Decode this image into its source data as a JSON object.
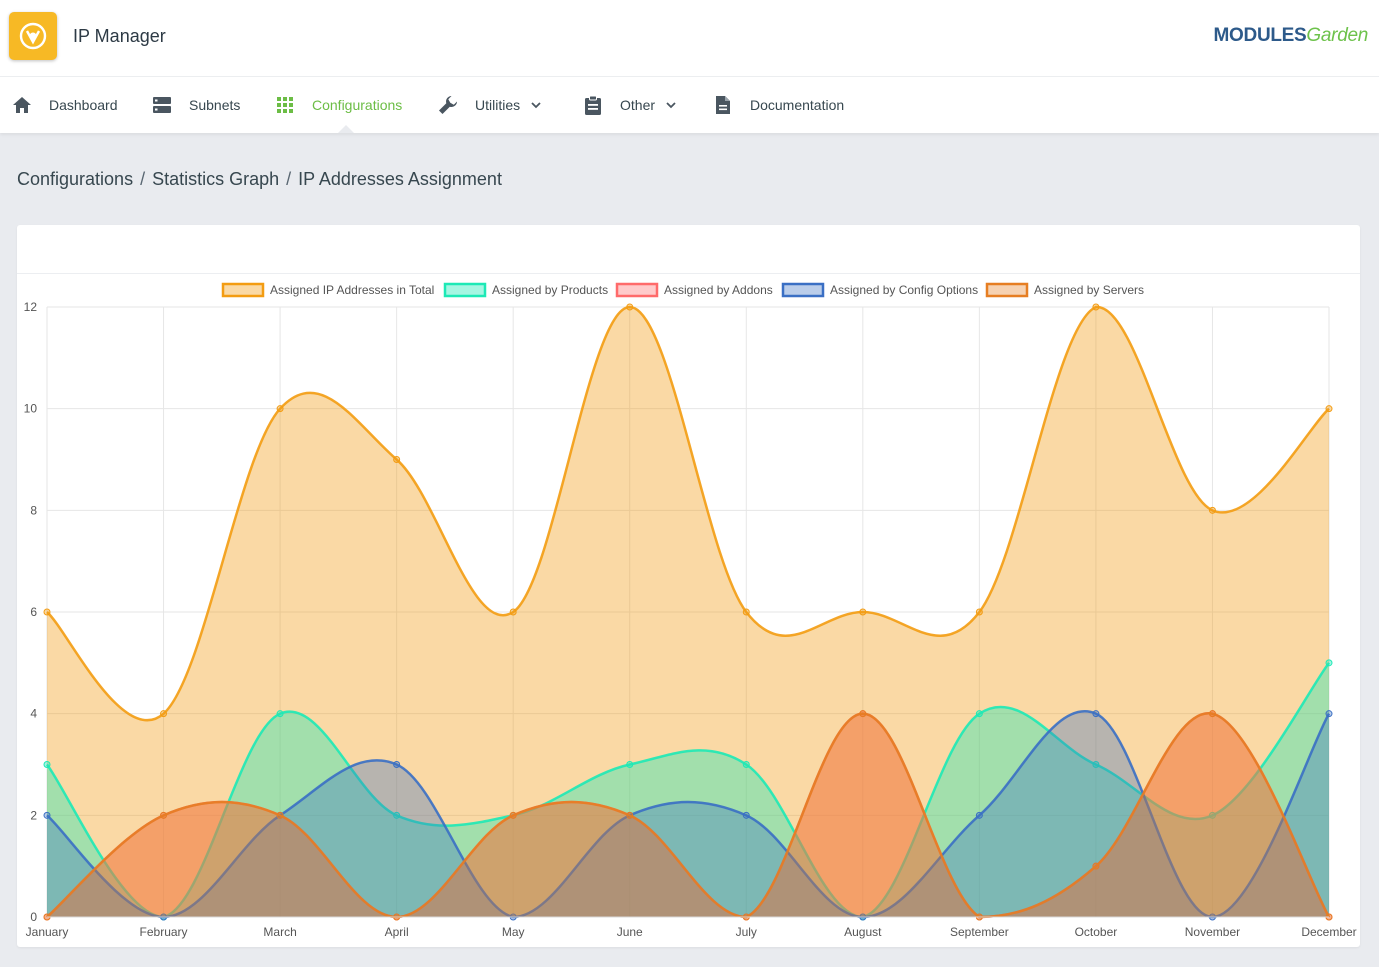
{
  "app": {
    "title": "IP Manager",
    "brand_bold": "MODULES",
    "brand_light": "Garden"
  },
  "nav": [
    {
      "label": "Dashboard",
      "icon": "home-icon"
    },
    {
      "label": "Subnets",
      "icon": "server-icon"
    },
    {
      "label": "Configurations",
      "icon": "grid-icon",
      "active": true
    },
    {
      "label": "Utilities",
      "icon": "wrench-icon",
      "dropdown": true
    },
    {
      "label": "Other",
      "icon": "clipboard-icon",
      "dropdown": true
    },
    {
      "label": "Documentation",
      "icon": "document-icon"
    }
  ],
  "breadcrumb": [
    "Configurations",
    "Statistics Graph",
    "IP Addresses Assignment"
  ],
  "colors": {
    "accent": "#6cbd45",
    "logo": "#f7b925"
  },
  "chart_data": {
    "type": "line",
    "smooth": true,
    "filled": true,
    "categories": [
      "January",
      "February",
      "March",
      "April",
      "May",
      "June",
      "July",
      "August",
      "September",
      "October",
      "November",
      "December"
    ],
    "ylim": [
      0,
      12
    ],
    "yticks": [
      0,
      2,
      4,
      6,
      8,
      10,
      12
    ],
    "grid": true,
    "legend": "top",
    "series": [
      {
        "name": "Assigned IP Addresses in Total",
        "values": [
          6,
          4,
          10,
          9,
          6,
          12,
          6,
          6,
          6,
          12,
          8,
          10
        ],
        "color": "#f39c12",
        "fill": "rgba(243,156,18,0.38)"
      },
      {
        "name": "Assigned by Products",
        "values": [
          3,
          0,
          4,
          2,
          2,
          3,
          3,
          0,
          4,
          3,
          2,
          5
        ],
        "color": "#1de9b6",
        "fill": "rgba(29,233,182,0.4)"
      },
      {
        "name": "Assigned by Addons",
        "values": [
          0,
          2,
          2,
          0,
          2,
          2,
          0,
          4,
          0,
          1,
          4,
          0
        ],
        "color": "#ff6b6b",
        "fill": "rgba(255,107,107,0.35)"
      },
      {
        "name": "Assigned by Config Options",
        "values": [
          2,
          0,
          2,
          3,
          0,
          2,
          2,
          0,
          2,
          4,
          0,
          4
        ],
        "color": "#3a6fc4",
        "fill": "rgba(58,111,196,0.35)"
      },
      {
        "name": "Assigned by Servers",
        "values": [
          0,
          2,
          2,
          0,
          2,
          2,
          0,
          4,
          0,
          1,
          4,
          0
        ],
        "color": "#e67e22",
        "fill": "rgba(230,126,34,0.35)"
      }
    ]
  }
}
